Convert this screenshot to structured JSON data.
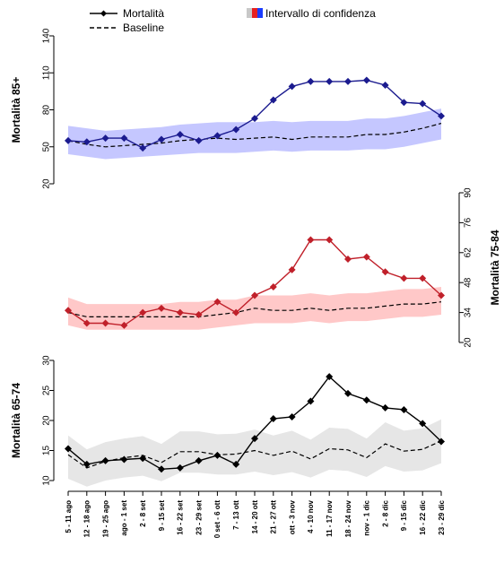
{
  "legend": {
    "mortality_label": "Mortalità",
    "baseline_label": "Baseline",
    "ci_label": "Intervallo di confidenza"
  },
  "chart_data": [
    {
      "type": "line",
      "ylabel": "Mortalità 85+",
      "y_axis_side": "left",
      "ylim": [
        20,
        140
      ],
      "yticks": [
        "20",
        "50",
        "80",
        "110",
        "140"
      ],
      "color": "#1b1b8f",
      "band_color": "#c5c7ff",
      "series": [
        {
          "name": "Mortalità",
          "values": [
            55,
            54,
            57,
            57,
            49,
            56,
            60,
            55,
            59,
            64,
            73,
            88,
            99,
            103,
            103,
            103,
            104,
            100,
            86,
            85,
            75
          ]
        },
        {
          "name": "Baseline",
          "values": [
            55,
            52,
            50,
            51,
            52,
            53,
            55,
            56,
            57,
            56,
            57,
            58,
            56,
            58,
            58,
            58,
            60,
            60,
            62,
            65,
            69
          ]
        }
      ],
      "ci_lower": [
        44,
        42,
        40,
        41,
        42,
        43,
        44,
        45,
        45,
        45,
        46,
        47,
        46,
        47,
        47,
        47,
        48,
        48,
        50,
        53,
        56
      ],
      "ci_upper": [
        67,
        65,
        63,
        64,
        65,
        66,
        68,
        69,
        70,
        70,
        70,
        71,
        70,
        71,
        71,
        71,
        73,
        73,
        75,
        78,
        81
      ]
    },
    {
      "type": "line",
      "ylabel": "Mortalità 75-84",
      "y_axis_side": "right",
      "ylim": [
        20,
        90
      ],
      "yticks": [
        "20",
        "34",
        "48",
        "62",
        "76",
        "90"
      ],
      "color": "#c0202a",
      "band_color": "#ffc8c8",
      "series": [
        {
          "name": "Mortalità",
          "values": [
            35,
            29,
            29,
            28,
            34,
            36,
            34,
            33,
            39,
            34,
            42,
            46,
            54,
            68,
            68,
            59,
            60,
            53,
            50,
            50,
            42
          ]
        },
        {
          "name": "Baseline",
          "values": [
            34,
            32,
            32,
            32,
            32,
            32,
            32,
            32,
            33,
            34,
            36,
            35,
            35,
            36,
            35,
            36,
            36,
            37,
            38,
            38,
            39
          ]
        }
      ],
      "ci_lower": [
        28,
        26,
        26,
        26,
        26,
        26,
        26,
        26,
        27,
        28,
        29,
        29,
        29,
        30,
        29,
        30,
        30,
        31,
        32,
        32,
        33
      ],
      "ci_upper": [
        41,
        38,
        38,
        38,
        38,
        38,
        39,
        39,
        40,
        40,
        42,
        42,
        42,
        43,
        42,
        43,
        43,
        44,
        45,
        45,
        46
      ]
    },
    {
      "type": "line",
      "ylabel": "Mortalità 65-74",
      "y_axis_side": "left",
      "ylim": [
        10,
        30
      ],
      "yticks": [
        "10",
        "15",
        "20",
        "25",
        "30"
      ],
      "color": "#000000",
      "band_color": "#e6e6e6",
      "series": [
        {
          "name": "Mortalità",
          "values": [
            15.3,
            12.7,
            13.3,
            13.5,
            13.7,
            11.9,
            12.1,
            13.3,
            14.2,
            12.7,
            17.0,
            20.3,
            20.6,
            23.2,
            27.3,
            24.5,
            23.4,
            22.1,
            21.8,
            19.5,
            16.5
          ]
        },
        {
          "name": "Baseline",
          "values": [
            14.3,
            12.1,
            13.2,
            13.8,
            14.2,
            13.0,
            14.8,
            14.8,
            14.3,
            14.4,
            15.0,
            14.2,
            14.9,
            13.6,
            15.3,
            15.1,
            13.8,
            16.1,
            14.9,
            15.2,
            16.6
          ]
        }
      ],
      "ci_lower": [
        10.3,
        9.0,
        10.0,
        10.5,
        10.8,
        9.9,
        11.3,
        11.3,
        11.0,
        11.0,
        11.5,
        10.9,
        11.4,
        10.5,
        11.8,
        11.6,
        10.6,
        12.4,
        11.5,
        11.7,
        12.9
      ],
      "ci_upper": [
        17.5,
        15.2,
        16.4,
        17.0,
        17.4,
        16.1,
        18.2,
        18.2,
        17.7,
        17.8,
        18.5,
        17.5,
        18.3,
        16.8,
        18.8,
        18.6,
        17.0,
        19.7,
        18.3,
        18.7,
        20.2
      ]
    }
  ],
  "x_labels": [
    "5 - 11 ago",
    "12 - 18 ago",
    "19 - 25 ago",
    "ago - 1 set",
    "2 - 8 set",
    "9 - 15 set",
    "16 - 22 set",
    "23 - 29 set",
    "0 set - 6 ott",
    "7 - 13 ott",
    "14 - 20 ott",
    "21 - 27 ott",
    "ott - 3 nov",
    "4 - 10 nov",
    "11 - 17 nov",
    "18 - 24 nov",
    "nov - 1 dic",
    "2 - 8 dic",
    "9 - 15 dic",
    "16 - 22 dic",
    "23 - 29 dic"
  ],
  "legend_colors": {
    "gray": "#c8c8c8",
    "red": "#e62020",
    "blue": "#1a3cff"
  }
}
